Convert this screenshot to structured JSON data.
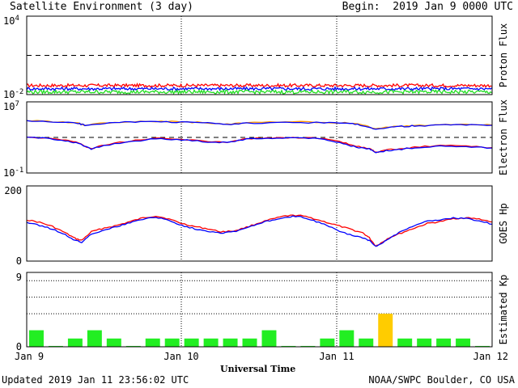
{
  "header": {
    "title": "Satellite Environment (3 day)",
    "begin": "Begin:  2019 Jan 9 0000 UTC"
  },
  "footer": {
    "updated": "Updated 2019 Jan 11 23:56:02 UTC",
    "credit": "NOAA/SWPC Boulder, CO USA"
  },
  "x_axis": {
    "title": "Universal Time",
    "ticks": [
      "Jan 9",
      "Jan 10",
      "Jan 11",
      "Jan 12"
    ]
  },
  "colors": {
    "red": "#ff0000",
    "blue": "#0000ff",
    "green": "#22dd22",
    "orange": "#ff9900",
    "kp_green": "#22ee22",
    "kp_yellow": "#ffcc00"
  },
  "chart_data": [
    {
      "type": "line",
      "ylabel": "Proton Flux",
      "scale": "log",
      "ylim": [
        0.01,
        10000
      ],
      "ticks": [
        {
          "base": "10",
          "exp": "4",
          "value": 10000
        },
        {
          "base": "10",
          "exp": "-2",
          "value": 0.01
        }
      ],
      "threshold": 10,
      "x_range_hours": [
        0,
        72
      ],
      "series": [
        {
          "color": "red",
          "level": 0.05,
          "noise_decades": 0.12
        },
        {
          "color": "blue",
          "level": 0.028,
          "noise_decades": 0.12
        },
        {
          "color": "green",
          "level": 0.016,
          "noise_decades": 0.14
        }
      ]
    },
    {
      "type": "line",
      "ylabel": "Electron Flux",
      "scale": "log",
      "ylim": [
        0.1,
        10000000
      ],
      "ticks": [
        {
          "base": "10",
          "exp": "7",
          "value": 10000000
        },
        {
          "base": "10",
          "exp": "-1",
          "value": 0.1
        }
      ],
      "threshold": 1000,
      "x_range_hours": [
        0,
        72
      ],
      "series": [
        {
          "color": "orange",
          "x": [
            0,
            4,
            8,
            9,
            12,
            16,
            20,
            24,
            28,
            31,
            34,
            40,
            46,
            50,
            52,
            54,
            56,
            58,
            60,
            64,
            68,
            72
          ],
          "values": [
            80000,
            60000,
            40000,
            25000,
            45000,
            60000,
            65000,
            55000,
            45000,
            30000,
            45000,
            55000,
            50000,
            40000,
            25000,
            9000,
            15000,
            18000,
            22000,
            26000,
            28000,
            25000
          ]
        },
        {
          "color": "blue",
          "x": [
            0,
            4,
            8,
            9,
            12,
            16,
            20,
            24,
            28,
            31,
            34,
            40,
            46,
            50,
            52,
            54,
            56,
            58,
            60,
            64,
            68,
            72
          ],
          "values": [
            70000,
            55000,
            38000,
            23000,
            40000,
            55000,
            60000,
            50000,
            42000,
            28000,
            40000,
            50000,
            45000,
            36000,
            23000,
            8500,
            14000,
            17000,
            20000,
            24000,
            26000,
            23000
          ]
        },
        {
          "color": "red",
          "x": [
            0,
            3,
            6,
            8,
            10,
            12,
            16,
            20,
            24,
            28,
            31,
            34,
            38,
            42,
            46,
            49,
            51,
            53,
            54,
            56,
            58,
            60,
            64,
            68,
            72
          ],
          "values": [
            1100,
            900,
            500,
            250,
            50,
            150,
            400,
            800,
            600,
            350,
            300,
            700,
            900,
            1000,
            700,
            250,
            100,
            60,
            20,
            40,
            50,
            80,
            120,
            110,
            70
          ]
        },
        {
          "color": "blue",
          "x": [
            0,
            3,
            6,
            8,
            10,
            12,
            16,
            20,
            24,
            28,
            31,
            34,
            38,
            42,
            46,
            49,
            51,
            53,
            54,
            56,
            58,
            60,
            64,
            68,
            72
          ],
          "values": [
            1000,
            800,
            450,
            220,
            45,
            130,
            350,
            700,
            550,
            320,
            280,
            650,
            850,
            950,
            650,
            200,
            80,
            50,
            18,
            35,
            45,
            70,
            110,
            100,
            65
          ]
        }
      ]
    },
    {
      "type": "line",
      "ylabel": "GOES Hp",
      "scale": "linear",
      "ylim": [
        0,
        200
      ],
      "ticks": [
        {
          "label": "200",
          "value": 200
        },
        {
          "label": "0",
          "value": 0
        }
      ],
      "x_range_hours": [
        0,
        72
      ],
      "series": [
        {
          "color": "red",
          "x": [
            0,
            2,
            4,
            6,
            7.5,
            8.5,
            10,
            12,
            14,
            16,
            18,
            20,
            22,
            24,
            26,
            28,
            30,
            32,
            34,
            36,
            38,
            40,
            42,
            44,
            46,
            48,
            50,
            52,
            53,
            54,
            55,
            56,
            58,
            60,
            62,
            64,
            66,
            68,
            70,
            72
          ],
          "values": [
            110,
            103,
            92,
            75,
            60,
            55,
            78,
            88,
            95,
            105,
            115,
            120,
            112,
            100,
            92,
            86,
            78,
            80,
            90,
            102,
            112,
            120,
            122,
            115,
            105,
            95,
            85,
            75,
            62,
            40,
            50,
            62,
            75,
            88,
            100,
            105,
            113,
            115,
            112,
            104
          ]
        },
        {
          "color": "blue",
          "x": [
            0,
            2,
            4,
            6,
            7.5,
            8.5,
            10,
            12,
            14,
            16,
            18,
            20,
            22,
            24,
            26,
            28,
            30,
            32,
            34,
            36,
            38,
            40,
            42,
            44,
            46,
            48,
            50,
            52,
            53,
            54,
            55,
            56,
            58,
            60,
            62,
            64,
            66,
            68,
            70,
            72
          ],
          "values": [
            103,
            95,
            85,
            70,
            55,
            50,
            72,
            83,
            92,
            102,
            112,
            117,
            108,
            95,
            86,
            80,
            75,
            78,
            88,
            100,
            110,
            117,
            120,
            110,
            98,
            82,
            70,
            62,
            55,
            38,
            48,
            60,
            80,
            95,
            106,
            110,
            115,
            113,
            108,
            98
          ]
        }
      ]
    },
    {
      "type": "bar",
      "ylabel": "Estimated Kp",
      "ylim": [
        0,
        9
      ],
      "ticks": [
        {
          "label": "9",
          "value": 9
        },
        {
          "label": "0",
          "value": 0
        }
      ],
      "dotted_levels": [
        4,
        6,
        8
      ],
      "bar_width_hours": 3,
      "values": [
        2,
        0.1,
        1,
        2,
        1,
        0.1,
        1,
        1,
        1,
        1,
        1,
        1,
        2,
        0.1,
        0.1,
        1,
        2,
        1,
        4,
        1,
        1,
        1,
        1,
        0.1
      ],
      "storm_threshold": 4
    }
  ]
}
